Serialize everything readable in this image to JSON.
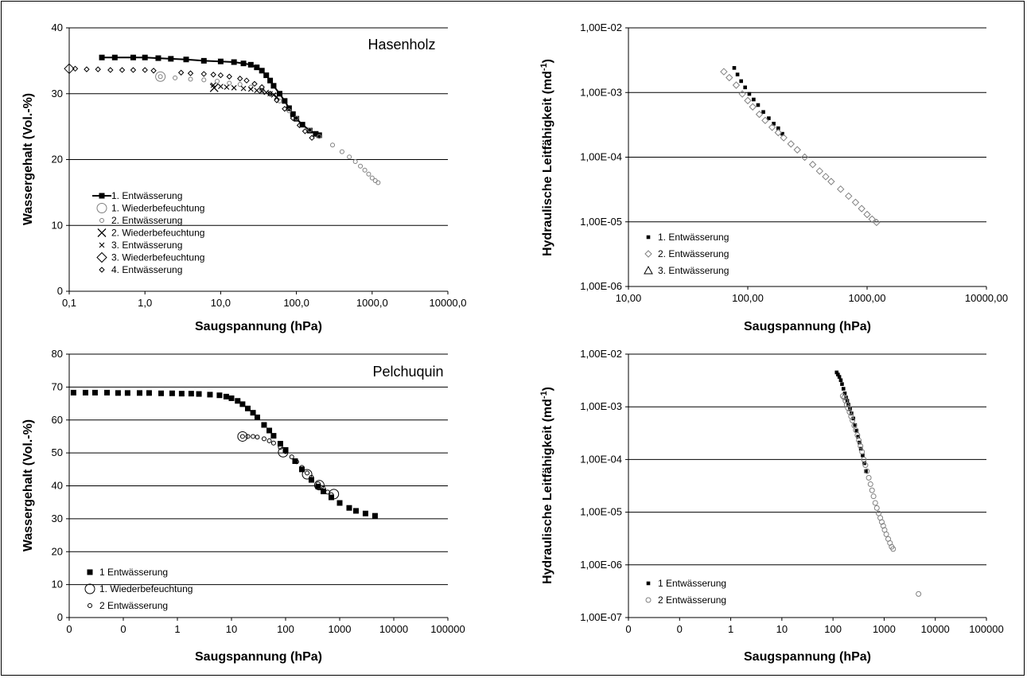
{
  "chart_data": [
    {
      "type": "scatter",
      "title": "Hasenholz",
      "xlabel": "Saugspannung (hPa)",
      "ylabel": "Wassergehalt (Vol.-%)",
      "x_scale": "log",
      "xlim": [
        0.1,
        10000
      ],
      "ylim": [
        0,
        40
      ],
      "x_ticks": [
        "0,1",
        "1,0",
        "10,0",
        "100,0",
        "1000,0",
        "10000,0"
      ],
      "y_ticks": [
        "0",
        "10",
        "20",
        "30",
        "40"
      ],
      "grid": "horizontal",
      "legend_position": "bottom-left",
      "series": [
        {
          "name": "1. Entwässerung",
          "marker": "square-line",
          "color": "#000000",
          "x": [
            0.27,
            0.4,
            0.7,
            1,
            1.5,
            2.2,
            3.5,
            6,
            10,
            15,
            20,
            25,
            30,
            35,
            40,
            45,
            50,
            60,
            70,
            80,
            90,
            100,
            120,
            150,
            180,
            200
          ],
          "y": [
            35.5,
            35.5,
            35.5,
            35.5,
            35.4,
            35.3,
            35.2,
            35.0,
            34.9,
            34.8,
            34.6,
            34.4,
            34.0,
            33.5,
            32.8,
            32.0,
            31.2,
            30.0,
            28.9,
            27.8,
            26.9,
            26.2,
            25.3,
            24.4,
            23.9,
            23.7
          ]
        },
        {
          "name": "1. Wiederbefeuchtung",
          "marker": "circle-open-large",
          "color": "#7f7f7f",
          "x": [
            1.6
          ],
          "y": [
            32.6
          ]
        },
        {
          "name": "2. Entwässerung",
          "marker": "circle-small",
          "color": "#7f7f7f",
          "x": [
            1.6,
            2.5,
            4,
            6,
            9,
            13,
            18,
            25,
            35,
            45,
            60,
            80,
            100,
            150,
            200,
            300,
            400,
            500,
            600,
            700,
            800,
            900,
            1000,
            1100,
            1200
          ],
          "y": [
            32.6,
            32.4,
            32.2,
            32.1,
            31.9,
            31.6,
            31.4,
            31.0,
            30.5,
            30.0,
            28.9,
            27.4,
            26.3,
            24.5,
            23.5,
            22.2,
            21.2,
            20.4,
            19.7,
            19.0,
            18.4,
            17.8,
            17.2,
            16.8,
            16.5
          ]
        },
        {
          "name": "2. Wiederbefeuchtung",
          "marker": "x-large",
          "color": "#000000",
          "x": [
            8.2
          ],
          "y": [
            30.9
          ]
        },
        {
          "name": "3. Entwässerung",
          "marker": "x-small",
          "color": "#000000",
          "x": [
            8,
            10,
            12,
            15,
            20,
            25,
            30,
            35,
            40,
            45,
            50,
            55
          ],
          "y": [
            31.3,
            31.1,
            31.0,
            30.9,
            30.8,
            30.7,
            30.5,
            30.4,
            30.2,
            30.0,
            29.8,
            29.5
          ]
        },
        {
          "name": "3. Wiederbefeuchtung",
          "marker": "diamond-large",
          "color": "#000000",
          "x": [
            0.1
          ],
          "y": [
            33.8
          ]
        },
        {
          "name": "4. Entwässerung",
          "marker": "diamond-small",
          "color": "#000000",
          "x": [
            0.12,
            0.17,
            0.24,
            0.35,
            0.5,
            0.7,
            1,
            1.3,
            3,
            4,
            6,
            8,
            10,
            13,
            18,
            22,
            28,
            35,
            45,
            55,
            70,
            90,
            110,
            130,
            160
          ],
          "y": [
            33.8,
            33.7,
            33.7,
            33.6,
            33.6,
            33.6,
            33.6,
            33.5,
            33.2,
            33.1,
            33.0,
            32.9,
            32.8,
            32.6,
            32.3,
            32.0,
            31.5,
            31.0,
            30.0,
            29.0,
            27.7,
            26.3,
            25.2,
            24.3,
            23.3
          ]
        }
      ]
    },
    {
      "type": "scatter",
      "xlabel": "Saugspannung (hPa)",
      "ylabel": "Hydraulische Leitfähigkeit (md",
      "ylabel_sup": "-1",
      "ylabel_end": ")",
      "x_scale": "log",
      "y_scale": "log",
      "xlim": [
        10,
        10000
      ],
      "ylim": [
        1e-06,
        0.01
      ],
      "x_ticks": [
        "10,00",
        "100,00",
        "1000,00",
        "10000,00"
      ],
      "y_ticks": [
        "1,00E-06",
        "1,00E-05",
        "1,00E-04",
        "1,00E-03",
        "1,00E-02"
      ],
      "grid": "horizontal",
      "legend_position": "bottom-left",
      "series": [
        {
          "name": "1. Entwässerung",
          "marker": "square-small",
          "color": "#000000",
          "x": [
            77,
            82,
            88,
            95,
            103,
            112,
            122,
            135,
            150,
            165,
            180,
            195
          ],
          "y": [
            0.0024,
            0.0019,
            0.0015,
            0.0012,
            0.00095,
            0.00078,
            0.00064,
            0.0005,
            0.0004,
            0.00033,
            0.00028,
            0.00023
          ]
        },
        {
          "name": "2. Entwässerung",
          "marker": "diamond-open",
          "color": "#808080",
          "x": [
            63,
            70,
            80,
            90,
            100,
            110,
            125,
            140,
            160,
            180,
            200,
            230,
            260,
            300,
            350,
            400,
            450,
            500,
            600,
            700,
            800,
            900,
            1000,
            1100,
            1200
          ],
          "y": [
            0.0021,
            0.0017,
            0.0013,
            0.00095,
            0.00075,
            0.0006,
            0.00046,
            0.00037,
            0.00029,
            0.00024,
            0.0002,
            0.00016,
            0.00013,
            0.0001,
            7.7e-05,
            6.1e-05,
            5e-05,
            4.2e-05,
            3.2e-05,
            2.5e-05,
            2e-05,
            1.6e-05,
            1.3e-05,
            1.1e-05,
            9.8e-06
          ]
        },
        {
          "name": "3. Entwässerung",
          "marker": "triangle-open",
          "color": "#000000",
          "x": [],
          "y": []
        }
      ]
    },
    {
      "type": "scatter",
      "title": "Pelchuquin",
      "xlabel": "Saugspannung (hPa)",
      "ylabel": "Wassergehalt (Vol.-%)",
      "x_scale": "log",
      "xlim": [
        0.01,
        100000
      ],
      "ylim": [
        0,
        80
      ],
      "x_ticks": [
        "0",
        "0",
        "1",
        "10",
        "100",
        "1000",
        "10000",
        "100000"
      ],
      "y_ticks": [
        "0",
        "10",
        "20",
        "30",
        "40",
        "50",
        "60",
        "70",
        "80"
      ],
      "grid": "horizontal",
      "legend_position": "bottom-left",
      "series": [
        {
          "name": "1 Entwässerung",
          "marker": "square-filled",
          "color": "#000000",
          "x": [
            0.012,
            0.02,
            0.03,
            0.05,
            0.08,
            0.12,
            0.2,
            0.3,
            0.5,
            0.8,
            1.2,
            1.8,
            2.5,
            4,
            6,
            8,
            10,
            13,
            16,
            20,
            25,
            30,
            40,
            50,
            60,
            80,
            100,
            150,
            200,
            300,
            400,
            500,
            700,
            1000,
            1500,
            2000,
            3000,
            4500
          ],
          "y": [
            68.3,
            68.3,
            68.3,
            68.3,
            68.2,
            68.2,
            68.2,
            68.2,
            68.1,
            68.1,
            68.0,
            68.0,
            67.9,
            67.7,
            67.5,
            67.1,
            66.6,
            65.8,
            64.8,
            63.5,
            62.2,
            60.8,
            58.5,
            56.8,
            55.2,
            52.8,
            50.9,
            47.5,
            45.0,
            41.8,
            39.8,
            38.3,
            36.5,
            34.8,
            33.3,
            32.4,
            31.6,
            30.9
          ]
        },
        {
          "name": "1. Wiederbefeuchtung",
          "marker": "circle-open-large",
          "color": "#000000",
          "x": [
            16,
            90,
            250,
            420,
            780
          ],
          "y": [
            55.0,
            50.2,
            43.5,
            40.2,
            37.5
          ]
        },
        {
          "name": "2 Entwässerung",
          "marker": "circle-small",
          "color": "#000000",
          "x": [
            16,
            20,
            25,
            30,
            40,
            50,
            60,
            80,
            100,
            130,
            160,
            200,
            250,
            300,
            400,
            500,
            600,
            700
          ],
          "y": [
            55.0,
            55.0,
            55.0,
            54.8,
            54.3,
            53.7,
            53.0,
            51.7,
            50.4,
            48.8,
            47.3,
            45.6,
            43.9,
            42.6,
            40.6,
            39.2,
            38.1,
            37.3
          ]
        }
      ]
    },
    {
      "type": "scatter",
      "xlabel": "Saugspannung (hPa)",
      "ylabel": "Hydraulische Leitfähigkeit (md",
      "ylabel_sup": "-1",
      "ylabel_end": ")",
      "x_scale": "log",
      "y_scale": "log",
      "xlim": [
        0.01,
        100000
      ],
      "ylim": [
        1e-07,
        0.01
      ],
      "x_ticks": [
        "0",
        "0",
        "1",
        "10",
        "100",
        "1000",
        "10000",
        "100000"
      ],
      "y_ticks": [
        "1,00E-07",
        "1,00E-06",
        "1,00E-05",
        "1,00E-04",
        "1,00E-03",
        "1,00E-02"
      ],
      "grid": "horizontal",
      "legend_position": "bottom-left",
      "series": [
        {
          "name": "1 Entwässerung",
          "marker": "square-small",
          "color": "#000000",
          "x": [
            118,
            125,
            133,
            142,
            150,
            160,
            170,
            180,
            190,
            200,
            215,
            230,
            250,
            270,
            290,
            310,
            330,
            350,
            380,
            410,
            440
          ],
          "y": [
            0.0045,
            0.0041,
            0.0037,
            0.0032,
            0.0027,
            0.0022,
            0.0018,
            0.0015,
            0.0013,
            0.0011,
            0.0009,
            0.00075,
            0.0006,
            0.00045,
            0.00035,
            0.00027,
            0.00021,
            0.00016,
            0.00012,
            8.5e-05,
            6e-05
          ]
        },
        {
          "name": "2 Entwässerung",
          "marker": "circle-open",
          "color": "#808080",
          "x": [
            155,
            165,
            175,
            185,
            195,
            210,
            225,
            240,
            260,
            280,
            300,
            320,
            345,
            370,
            400,
            430,
            460,
            500,
            540,
            580,
            620,
            670,
            720,
            780,
            840,
            900,
            960,
            1020,
            1100,
            1200,
            1300,
            1400,
            1500,
            4700
          ],
          "y": [
            0.0016,
            0.0015,
            0.0013,
            0.0011,
            0.00095,
            0.0008,
            0.00066,
            0.00055,
            0.00044,
            0.00036,
            0.00029,
            0.00023,
            0.00018,
            0.00014,
            0.0001,
            7.8e-05,
            6e-05,
            4.5e-05,
            3.4e-05,
            2.6e-05,
            2e-05,
            1.5e-05,
            1.2e-05,
            9.5e-06,
            7.8e-06,
            6.5e-06,
            5.5e-06,
            4.6e-06,
            3.8e-06,
            3.1e-06,
            2.6e-06,
            2.2e-06,
            2e-06,
            2.8e-07
          ]
        }
      ]
    }
  ]
}
